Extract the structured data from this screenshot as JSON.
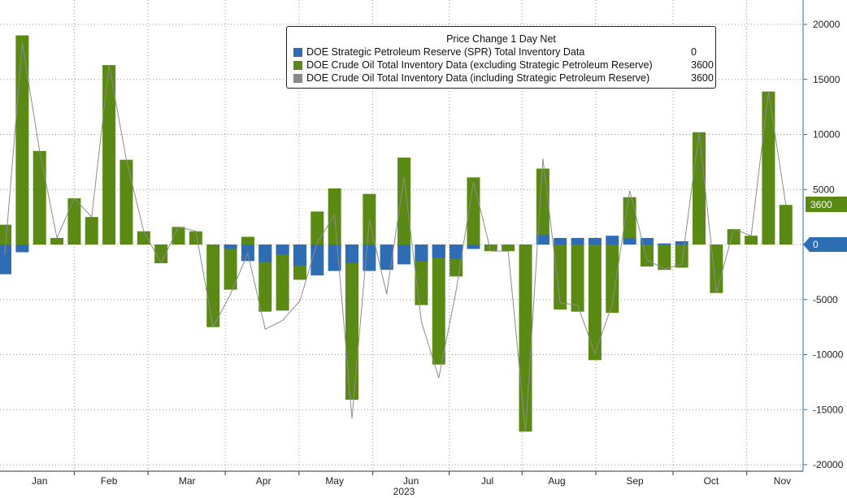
{
  "chart_data": {
    "type": "bar",
    "title": "Price Change 1 Day Net",
    "year_label": "2023",
    "months": [
      {
        "label": "Jan",
        "week": 2.0
      },
      {
        "label": "Feb",
        "week": 6.0
      },
      {
        "label": "Mar",
        "week": 10.5
      },
      {
        "label": "Apr",
        "week": 14.9
      },
      {
        "label": "May",
        "week": 19.0
      },
      {
        "label": "Jun",
        "week": 23.4
      },
      {
        "label": "Jul",
        "week": 27.8
      },
      {
        "label": "Aug",
        "week": 31.8
      },
      {
        "label": "Sep",
        "week": 36.3
      },
      {
        "label": "Oct",
        "week": 40.7
      },
      {
        "label": "Nov",
        "week": 44.8
      }
    ],
    "y_ticks": [
      20000,
      15000,
      10000,
      5000,
      0,
      -5000,
      -10000,
      -15000,
      -20000
    ],
    "ylim": [
      -20000,
      20000
    ],
    "last_value_label": "3600",
    "zero_value_label": "0",
    "series": [
      {
        "name": "DOE Strategic Petroleum Reserve (SPR) Total Inventory Data",
        "legend_value": "0",
        "color": "#2e6db4",
        "values": [
          -2700,
          -700,
          0,
          0,
          0,
          0,
          0,
          0,
          0,
          0,
          0,
          0,
          0,
          -400,
          -1500,
          -1600,
          -900,
          -1900,
          -2800,
          -2400,
          -1700,
          -2400,
          -2300,
          -1800,
          -1500,
          -1200,
          -1300,
          -400,
          0,
          0,
          0,
          900,
          600,
          600,
          600,
          800,
          600,
          600,
          100,
          300,
          0,
          0,
          0,
          0,
          0,
          0
        ]
      },
      {
        "name": "DOE Crude Oil Total Inventory Data (excluding Strategic Petroleum Reserve)",
        "legend_value": "3600",
        "color": "#5a8a14",
        "values": [
          1800,
          19000,
          8500,
          600,
          4200,
          2500,
          16300,
          7700,
          1200,
          -1700,
          1600,
          1200,
          -7500,
          -4100,
          700,
          -6100,
          -6000,
          -3200,
          3000,
          5100,
          -14100,
          4600,
          -2200,
          7900,
          -5500,
          -10900,
          -2900,
          6100,
          -600,
          -600,
          -17000,
          6900,
          -5900,
          -6100,
          -10500,
          -6200,
          4300,
          -2000,
          -2300,
          -2100,
          10200,
          -4400,
          1400,
          800,
          13900,
          3600
        ]
      },
      {
        "name": "DOE Crude Oil Total Inventory Data (including Strategic Petroleum Reserve)",
        "legend_value": "3600",
        "color": "#888888"
      }
    ]
  }
}
